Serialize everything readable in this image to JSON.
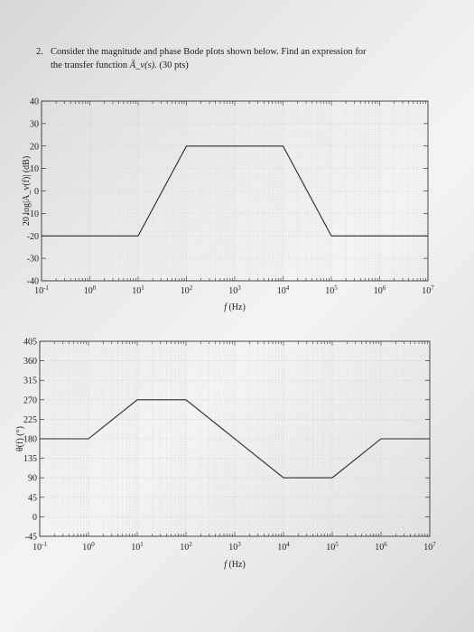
{
  "question": {
    "number": "2.",
    "line1": "Consider the magnitude and phase Bode plots shown below.  Find an expression for",
    "line2_prefix": "the transfer function",
    "line2_symbol": "Ã_v(s).",
    "line2_points": "(30 pts)"
  },
  "chart_data": [
    {
      "type": "line",
      "name": "magnitude",
      "title": "",
      "xlabel": "f (Hz)",
      "ylabel": "20 log|A_v(f)| (dB)",
      "xscale": "log",
      "xlim": [
        0.1,
        10000000
      ],
      "ylim": [
        -40,
        40
      ],
      "x_tick_labels": [
        "10^-1",
        "10^0",
        "10^1",
        "10^2",
        "10^3",
        "10^4",
        "10^5",
        "10^6",
        "10^7"
      ],
      "y_ticks": [
        40,
        30,
        20,
        10,
        0,
        -10,
        -20,
        -30,
        -40
      ],
      "grid": true,
      "series": [
        {
          "x": [
            0.1,
            10,
            100,
            1000,
            10000,
            100000,
            10000000
          ],
          "y": [
            -20,
            -20,
            20,
            20,
            20,
            -20,
            -20
          ]
        }
      ]
    },
    {
      "type": "line",
      "name": "phase",
      "title": "",
      "xlabel": "f (Hz)",
      "ylabel": "θ(f) (°)",
      "xscale": "log",
      "xlim": [
        0.1,
        10000000
      ],
      "ylim": [
        -45,
        405
      ],
      "x_tick_labels": [
        "10^-1",
        "10^0",
        "10^1",
        "10^2",
        "10^3",
        "10^4",
        "10^5",
        "10^6",
        "10^7"
      ],
      "y_ticks": [
        405,
        360,
        315,
        270,
        225,
        180,
        135,
        90,
        45,
        0,
        -45
      ],
      "grid": true,
      "series": [
        {
          "x": [
            0.1,
            1,
            10,
            100,
            10000,
            100000,
            1000000,
            10000000
          ],
          "y": [
            180,
            180,
            270,
            270,
            90,
            90,
            180,
            180
          ]
        }
      ]
    }
  ]
}
